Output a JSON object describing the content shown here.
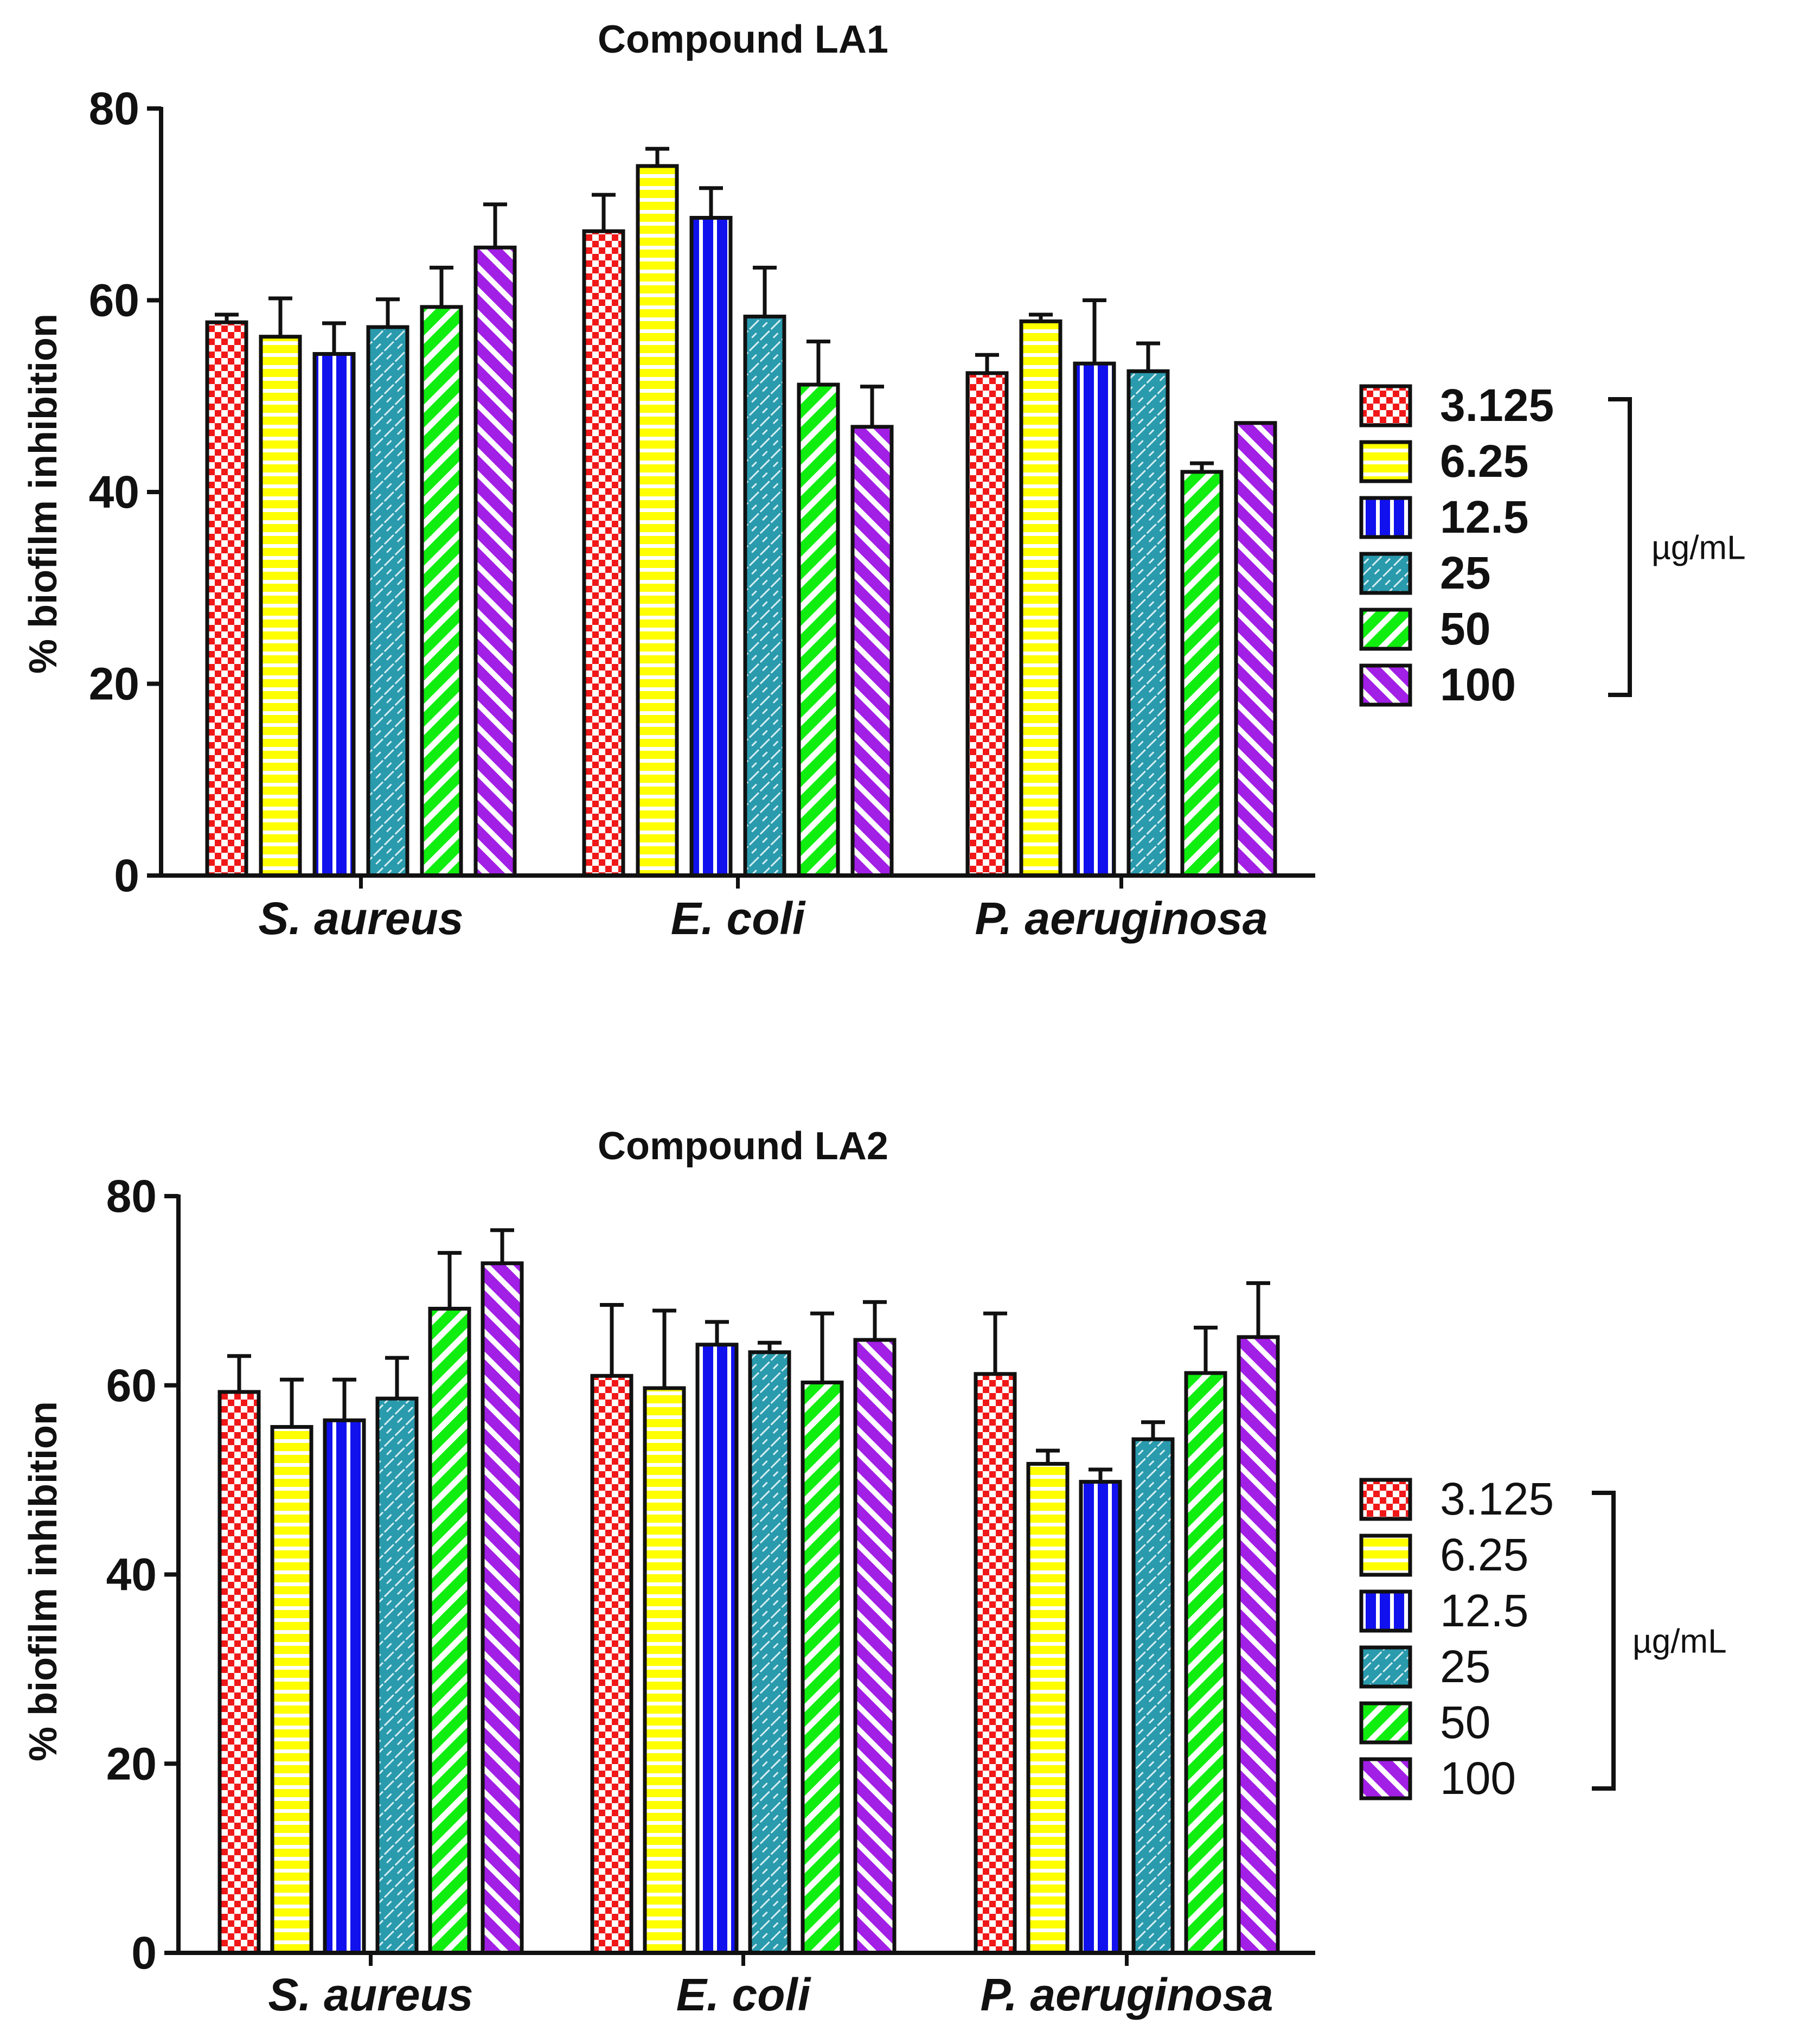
{
  "colors": {
    "3.125": "#f01818",
    "6.25": "#ffff00",
    "12.5": "#1111ee",
    "25": "#2a9aad",
    "50": "#10ee10",
    "100": "#a21fe6",
    "axis": "#111111"
  },
  "patterns": {
    "3.125": "checker",
    "6.25": "hstripe",
    "12.5": "vstripe",
    "25": "brick",
    "50": "diag-down",
    "100": "diag-up"
  },
  "chart_data": [
    {
      "type": "bar",
      "title": "Compound LA1",
      "xlabel": "",
      "ylabel": "% biofilm inhibition",
      "ylim": [
        0,
        80
      ],
      "yticks": [
        "0",
        "20",
        "40",
        "60",
        "80"
      ],
      "categories": [
        "S. aureus",
        "E. coli",
        "P. aeruginosa"
      ],
      "series": [
        {
          "name": "3.125",
          "values": [
            57.7,
            67.2,
            52.4
          ],
          "errors": [
            0.8,
            3.8,
            1.9
          ]
        },
        {
          "name": "6.25",
          "values": [
            56.2,
            74.0,
            57.8
          ],
          "errors": [
            4.0,
            1.8,
            0.7
          ]
        },
        {
          "name": "12.5",
          "values": [
            54.4,
            68.6,
            53.4
          ],
          "errors": [
            3.2,
            3.1,
            6.6
          ]
        },
        {
          "name": "25",
          "values": [
            57.2,
            58.3,
            52.6
          ],
          "errors": [
            2.9,
            5.1,
            2.9
          ]
        },
        {
          "name": "50",
          "values": [
            59.3,
            51.2,
            42.1
          ],
          "errors": [
            4.1,
            4.5,
            0.9
          ]
        },
        {
          "name": "100",
          "values": [
            65.5,
            46.8,
            47.2
          ],
          "errors": [
            4.5,
            4.2,
            0.0
          ]
        }
      ],
      "legend": {
        "entries": [
          "3.125",
          "6.25",
          "12.5",
          "25",
          "50",
          "100"
        ],
        "unit": "µg/mL",
        "position": "right"
      }
    },
    {
      "type": "bar",
      "title": "Compound LA2",
      "xlabel": "",
      "ylabel": "% biofilm inhibition",
      "ylim": [
        0,
        80
      ],
      "yticks": [
        "0",
        "20",
        "40",
        "60",
        "80"
      ],
      "categories": [
        "S. aureus",
        "E. coli",
        "P. aeruginosa"
      ],
      "series": [
        {
          "name": "3.125",
          "values": [
            59.3,
            61.0,
            61.2
          ],
          "errors": [
            3.8,
            7.5,
            6.4
          ]
        },
        {
          "name": "6.25",
          "values": [
            55.6,
            59.7,
            51.7
          ],
          "errors": [
            5.0,
            8.2,
            1.4
          ]
        },
        {
          "name": "12.5",
          "values": [
            56.3,
            64.3,
            49.8
          ],
          "errors": [
            4.3,
            2.4,
            1.3
          ]
        },
        {
          "name": "25",
          "values": [
            58.6,
            63.5,
            54.3
          ],
          "errors": [
            4.3,
            1.0,
            1.8
          ]
        },
        {
          "name": "50",
          "values": [
            68.1,
            60.3,
            61.3
          ],
          "errors": [
            5.9,
            7.3,
            4.8
          ]
        },
        {
          "name": "100",
          "values": [
            72.9,
            64.8,
            65.1
          ],
          "errors": [
            3.5,
            4.0,
            5.7
          ]
        }
      ],
      "legend": {
        "entries": [
          "3.125",
          "6.25",
          "12.5",
          "25",
          "50",
          "100"
        ],
        "unit": "µg/mL",
        "position": "right"
      }
    }
  ]
}
